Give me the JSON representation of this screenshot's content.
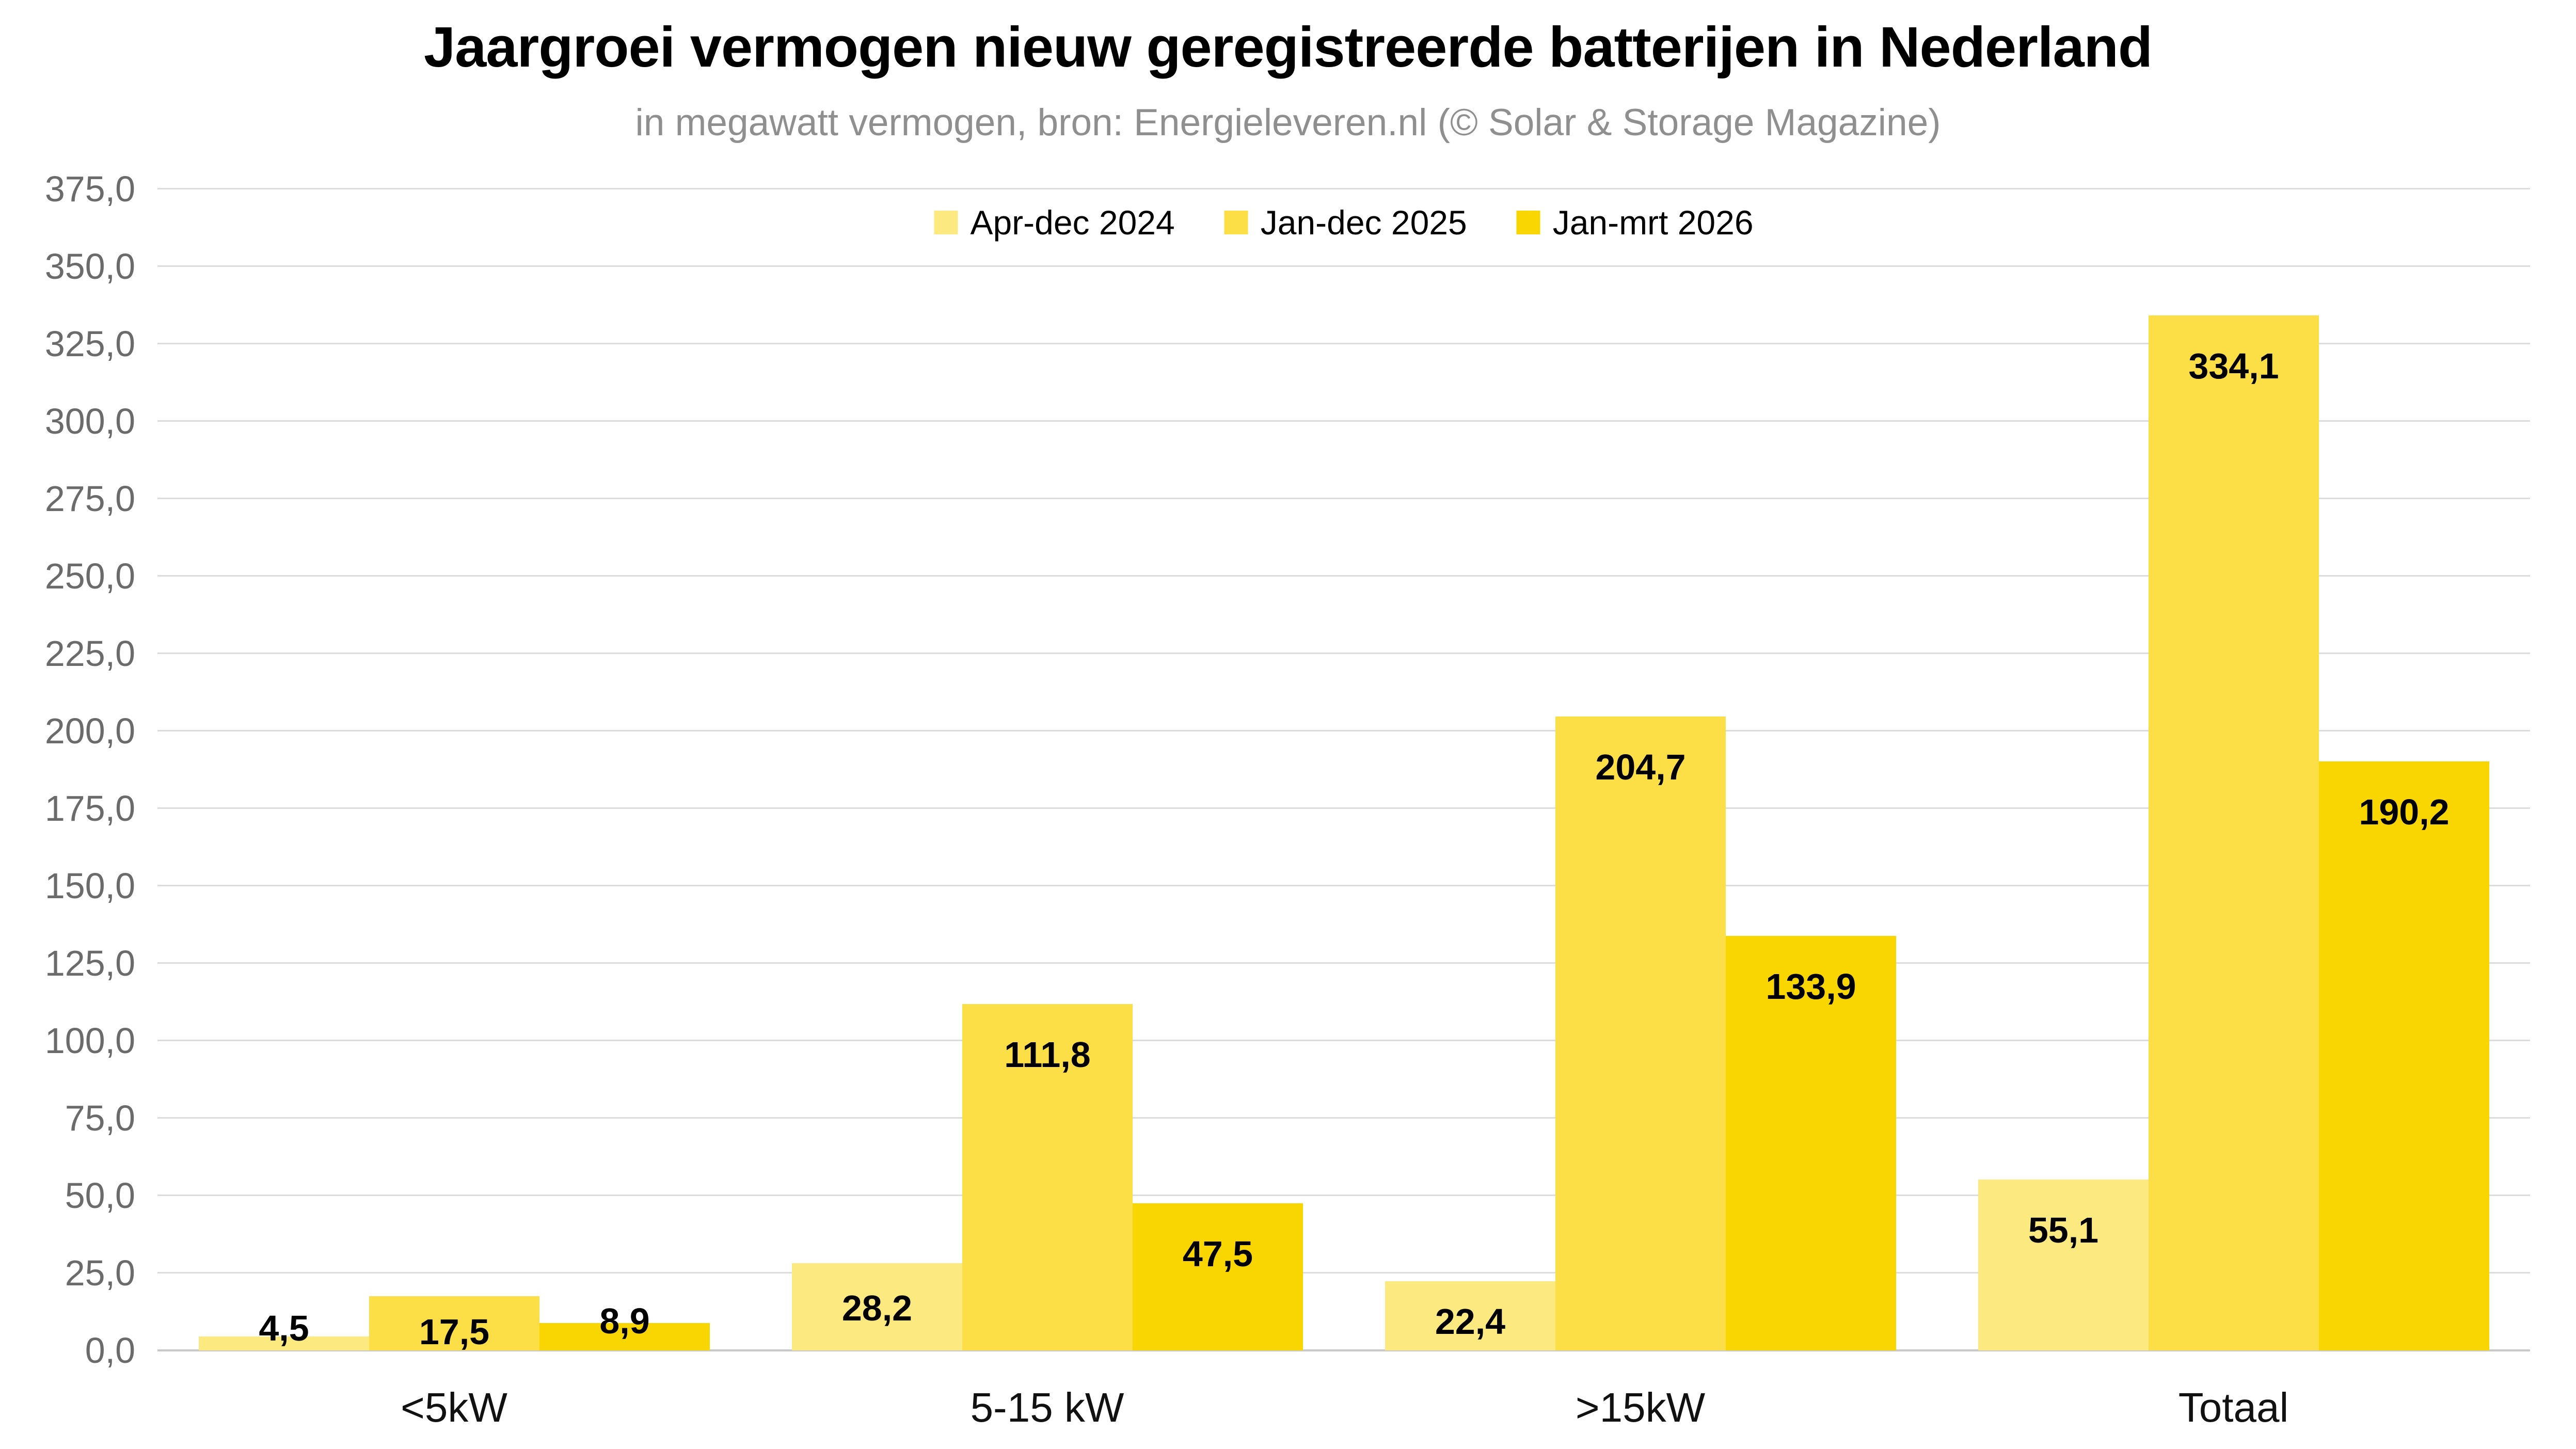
{
  "chart_data": {
    "type": "bar",
    "title": "Jaargroei vermogen nieuw geregistreerde batterijen in Nederland",
    "subtitle": "in megawatt vermogen, bron: Energieleveren.nl (© Solar & Storage Magazine)",
    "categories": [
      "<5kW",
      "5-15 kW",
      ">15kW",
      "Totaal"
    ],
    "series": [
      {
        "name": "Apr-dec 2024",
        "color": "#FCE980",
        "values": [
          4.5,
          28.2,
          22.4,
          55.1
        ],
        "labels": [
          "4,5",
          "28,2",
          "22,4",
          "55,1"
        ]
      },
      {
        "name": "Jan-dec 2025",
        "color": "#FCDF46",
        "values": [
          17.5,
          111.8,
          204.7,
          334.1
        ],
        "labels": [
          "17,5",
          "111,8",
          "204,7",
          "334,1"
        ]
      },
      {
        "name": "Jan-mrt 2026",
        "color": "#FAD601",
        "values": [
          8.9,
          47.5,
          133.9,
          190.2
        ],
        "labels": [
          "8,9",
          "47,5",
          "133,9",
          "190,2"
        ]
      }
    ],
    "ylim": [
      0,
      375
    ],
    "ytick_step": 25,
    "ytick_labels": [
      "0,0",
      "25,0",
      "50,0",
      "75,0",
      "100,0",
      "125,0",
      "150,0",
      "175,0",
      "200,0",
      "225,0",
      "250,0",
      "275,0",
      "300,0",
      "325,0",
      "350,0",
      "375,0"
    ],
    "grid": "horizontal-only",
    "legend_position": "top-center-inside"
  },
  "colors": {
    "background": "#FFFFFF",
    "gridline": "#DCDCDC",
    "baseline": "#C9C9C9",
    "axis_label": "#6B6B6B",
    "category_label": "#111111",
    "value_label": "#000000",
    "title": "#000000",
    "subtitle": "#8F8F8F"
  }
}
